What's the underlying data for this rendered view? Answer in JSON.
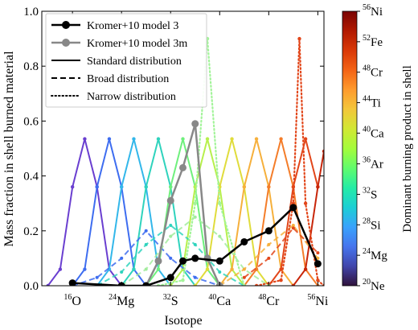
{
  "chart_data": {
    "type": "line",
    "xlabel": "Isotope",
    "ylabel": "Mass fraction in shell burned material",
    "ylim": [
      0,
      1.0
    ],
    "xlim": [
      11,
      57
    ],
    "y_ticks": [
      "0.0",
      "0.2",
      "0.4",
      "0.6",
      "0.8",
      "1.0"
    ],
    "y_tick_values": [
      0,
      0.2,
      0.4,
      0.6,
      0.8,
      1.0
    ],
    "x_ticks": [
      {
        "value": 16,
        "mass": "16",
        "el": "O"
      },
      {
        "value": 24,
        "mass": "24",
        "el": "Mg"
      },
      {
        "value": 32,
        "mass": "32",
        "el": "S"
      },
      {
        "value": 40,
        "mass": "40",
        "el": "Ca"
      },
      {
        "value": 48,
        "mass": "48",
        "el": "Cr"
      },
      {
        "value": 56,
        "mass": "56",
        "el": "Ni"
      }
    ],
    "legend_position": "top-left",
    "legend": [
      {
        "label": "Kromer+10 model 3",
        "style": "model",
        "color": "#000000"
      },
      {
        "label": "Kromer+10 model 3m",
        "style": "model",
        "color": "#888888"
      },
      {
        "label": "Standard distribution",
        "style": "solid",
        "color": "#000000"
      },
      {
        "label": "Broad distribution",
        "style": "dashed",
        "color": "#000000"
      },
      {
        "label": "Narrow distribution",
        "style": "dotted",
        "color": "#000000"
      }
    ],
    "colorbar": {
      "label": "Dominant burning product in shell",
      "ticks": [
        {
          "mass": "20",
          "el": "Ne",
          "frac": 0.0
        },
        {
          "mass": "24",
          "el": "Mg",
          "frac": 0.111
        },
        {
          "mass": "28",
          "el": "Si",
          "frac": 0.222
        },
        {
          "mass": "32",
          "el": "S",
          "frac": 0.333
        },
        {
          "mass": "36",
          "el": "Ar",
          "frac": 0.444
        },
        {
          "mass": "40",
          "el": "Ca",
          "frac": 0.556
        },
        {
          "mass": "44",
          "el": "Ti",
          "frac": 0.667
        },
        {
          "mass": "48",
          "el": "Cr",
          "frac": 0.778
        },
        {
          "mass": "52",
          "el": "Fe",
          "frac": 0.889
        },
        {
          "mass": "56",
          "el": "Ni",
          "frac": 1.0
        }
      ],
      "colormap": [
        "#30123b",
        "#4145ab",
        "#4675ed",
        "#39a2fc",
        "#1bcfd4",
        "#24eca6",
        "#61fc6c",
        "#a4fc3b",
        "#d1e834",
        "#f3c63a",
        "#fe9b2d",
        "#f36315",
        "#d93807",
        "#b11901",
        "#7a0403"
      ]
    },
    "standard_series": [
      {
        "color": "#6a3fd0",
        "x": [
          12,
          14,
          16,
          18,
          20,
          22,
          24
        ],
        "y": [
          0.0,
          0.06,
          0.36,
          0.535,
          0.36,
          0.06,
          0.0
        ]
      },
      {
        "color": "#3e6df0",
        "x": [
          16,
          18,
          20,
          22,
          24,
          26,
          28
        ],
        "y": [
          0.0,
          0.06,
          0.36,
          0.535,
          0.36,
          0.06,
          0.0
        ]
      },
      {
        "color": "#33b7ea",
        "x": [
          20,
          22,
          24,
          26,
          28,
          30,
          32
        ],
        "y": [
          0.0,
          0.06,
          0.36,
          0.535,
          0.36,
          0.06,
          0.0
        ]
      },
      {
        "color": "#2fd3bd",
        "x": [
          24,
          26,
          28,
          30,
          32,
          34,
          36
        ],
        "y": [
          0.0,
          0.06,
          0.36,
          0.535,
          0.36,
          0.06,
          0.0
        ]
      },
      {
        "color": "#6ff07d",
        "x": [
          28,
          30,
          32,
          34,
          36,
          38,
          40
        ],
        "y": [
          0.0,
          0.06,
          0.36,
          0.535,
          0.36,
          0.06,
          0.0
        ]
      },
      {
        "color": "#b7f04c",
        "x": [
          32,
          34,
          36,
          38,
          40,
          42,
          44
        ],
        "y": [
          0.0,
          0.06,
          0.36,
          0.535,
          0.36,
          0.06,
          0.0
        ]
      },
      {
        "color": "#e0dc3c",
        "x": [
          36,
          38,
          40,
          42,
          44,
          46,
          48
        ],
        "y": [
          0.0,
          0.06,
          0.36,
          0.535,
          0.36,
          0.06,
          0.0
        ]
      },
      {
        "color": "#f6b03c",
        "x": [
          40,
          42,
          44,
          46,
          48,
          50,
          52
        ],
        "y": [
          0.0,
          0.06,
          0.36,
          0.535,
          0.36,
          0.06,
          0.0
        ]
      },
      {
        "color": "#f47d2a",
        "x": [
          44,
          46,
          48,
          50,
          52,
          54,
          56
        ],
        "y": [
          0.0,
          0.06,
          0.36,
          0.535,
          0.36,
          0.06,
          0.0
        ]
      },
      {
        "color": "#e2461a",
        "x": [
          48,
          50,
          52,
          54,
          56
        ],
        "y": [
          0.0,
          0.06,
          0.36,
          0.535,
          0.36
        ]
      },
      {
        "color": "#c8260a",
        "x": [
          52,
          54,
          56,
          57
        ],
        "y": [
          0.0,
          0.06,
          0.36,
          0.49
        ]
      }
    ],
    "broad_series": [
      {
        "color": "#3e6df0",
        "x": [
          16,
          20,
          24,
          28,
          32,
          36,
          40
        ],
        "y": [
          0.0,
          0.03,
          0.1,
          0.2,
          0.1,
          0.03,
          0.0
        ]
      },
      {
        "color": "#2fd3bd",
        "x": [
          20,
          24,
          28,
          32,
          36,
          40,
          44
        ],
        "y": [
          0.0,
          0.05,
          0.15,
          0.22,
          0.15,
          0.05,
          0.0
        ]
      },
      {
        "color": "#a3ec9e",
        "x": [
          24,
          28,
          32,
          36,
          40,
          44,
          48
        ],
        "y": [
          0.0,
          0.06,
          0.18,
          0.25,
          0.18,
          0.06,
          0.0
        ]
      },
      {
        "color": "#f6b03c",
        "x": [
          40,
          44,
          48,
          52,
          56
        ],
        "y": [
          0.0,
          0.06,
          0.15,
          0.22,
          0.1
        ]
      },
      {
        "color": "#e2461a",
        "x": [
          44,
          48,
          52,
          56
        ],
        "y": [
          0.03,
          0.1,
          0.21,
          0.12
        ]
      }
    ],
    "narrow_series": [
      {
        "color": "#a3f49a",
        "x": [
          30,
          34,
          36,
          38,
          40,
          44
        ],
        "y": [
          0.0,
          0.02,
          0.3,
          0.9,
          0.3,
          0.0
        ]
      },
      {
        "color": "#e2461a",
        "x": [
          46,
          50,
          52,
          53,
          54,
          56,
          57
        ],
        "y": [
          0.0,
          0.02,
          0.3,
          0.9,
          0.3,
          0.02,
          0.0
        ]
      }
    ],
    "model_3": {
      "name": "Kromer+10 model 3",
      "color": "#000000",
      "x": [
        16,
        24,
        28,
        32,
        34,
        36,
        40,
        44,
        48,
        52,
        56
      ],
      "y": [
        0.01,
        0.0,
        0.0,
        0.03,
        0.09,
        0.1,
        0.09,
        0.16,
        0.2,
        0.285,
        0.08
      ]
    },
    "model_3m": {
      "name": "Kromer+10 model 3m",
      "color": "#888888",
      "x": [
        28,
        30,
        32,
        34,
        36,
        38,
        40
      ],
      "y": [
        0.0,
        0.09,
        0.31,
        0.43,
        0.59,
        0.1,
        0.0
      ]
    }
  }
}
